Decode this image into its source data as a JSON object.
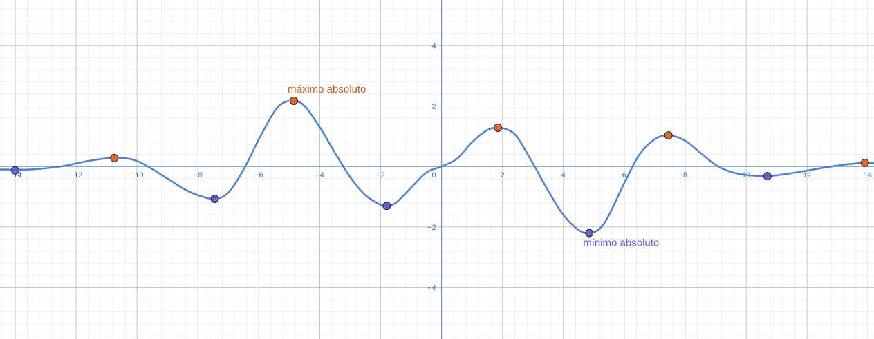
{
  "chart_data": {
    "type": "line",
    "title": "",
    "xlabel": "",
    "ylabel": "",
    "xlim": [
      -14.5,
      14.2
    ],
    "ylim": [
      -5.7,
      5.5
    ],
    "grid": true,
    "x_ticks": [
      -14,
      -12,
      -10,
      -8,
      -6,
      -4,
      -2,
      2,
      4,
      6,
      8,
      10,
      12,
      14
    ],
    "x_tick_labels": [
      "−14",
      "−12",
      "−10",
      "−8",
      "−6",
      "−4",
      "−2",
      "2",
      "4",
      "6",
      "8",
      "10",
      "12",
      "14"
    ],
    "y_ticks": [
      -4,
      -2,
      2,
      4
    ],
    "y_tick_labels": [
      "−4",
      "−2",
      "2",
      "4"
    ],
    "origin_label": "0",
    "series": [
      {
        "color": "#5284c6",
        "x": [
          -14.5,
          -13.5,
          -12.5,
          -12.0,
          -11.5,
          -10.75,
          -10.0,
          -9.0,
          -8.5,
          -8.0,
          -7.45,
          -7.0,
          -6.5,
          -6.0,
          -5.5,
          -5.2,
          -4.85,
          -4.5,
          -4.0,
          -3.5,
          -3.0,
          -2.5,
          -2.0,
          -1.8,
          -1.5,
          -1.0,
          -0.5,
          0.0,
          0.5,
          1.0,
          1.5,
          1.85,
          2.2,
          2.5,
          3.0,
          3.5,
          4.0,
          4.5,
          4.85,
          5.2,
          5.5,
          6.0,
          6.5,
          7.0,
          7.45,
          8.0,
          8.5,
          9.0,
          9.5,
          10.0,
          10.7,
          11.5,
          12.5,
          13.3,
          13.9,
          14.2
        ],
        "y": [
          -0.1,
          -0.1,
          0.0,
          0.1,
          0.2,
          0.28,
          0.18,
          -0.4,
          -0.72,
          -0.95,
          -1.07,
          -0.86,
          -0.1,
          0.9,
          1.8,
          2.1,
          2.17,
          2.0,
          1.3,
          0.45,
          -0.35,
          -0.95,
          -1.27,
          -1.3,
          -1.2,
          -0.7,
          -0.2,
          0.0,
          0.25,
          0.8,
          1.2,
          1.28,
          1.2,
          0.95,
          0.1,
          -0.8,
          -1.6,
          -2.1,
          -2.2,
          -2.05,
          -1.6,
          -0.55,
          0.4,
          0.9,
          1.03,
          0.85,
          0.45,
          0.05,
          -0.18,
          -0.28,
          -0.32,
          -0.22,
          -0.05,
          0.07,
          0.12,
          0.11
        ]
      }
    ],
    "extrema_points": {
      "maxima": [
        {
          "x": -10.75,
          "y": 0.28
        },
        {
          "x": -4.85,
          "y": 2.17
        },
        {
          "x": 1.85,
          "y": 1.28
        },
        {
          "x": 7.45,
          "y": 1.03
        },
        {
          "x": 13.9,
          "y": 0.12
        }
      ],
      "minima": [
        {
          "x": -14.0,
          "y": -0.13
        },
        {
          "x": -7.45,
          "y": -1.07
        },
        {
          "x": -1.8,
          "y": -1.3
        },
        {
          "x": 4.85,
          "y": -2.2
        },
        {
          "x": 10.7,
          "y": -0.32
        }
      ],
      "max_color": "#e0672b",
      "min_color": "#6a5acd"
    },
    "annotations": [
      {
        "text": "máximo absoluto",
        "x": -4.85,
        "y": 2.17,
        "position": "above",
        "color": "#c8601f"
      },
      {
        "text": "mínimo absoluto",
        "x": 4.85,
        "y": -2.2,
        "position": "below",
        "color": "#6a5acd"
      }
    ]
  }
}
